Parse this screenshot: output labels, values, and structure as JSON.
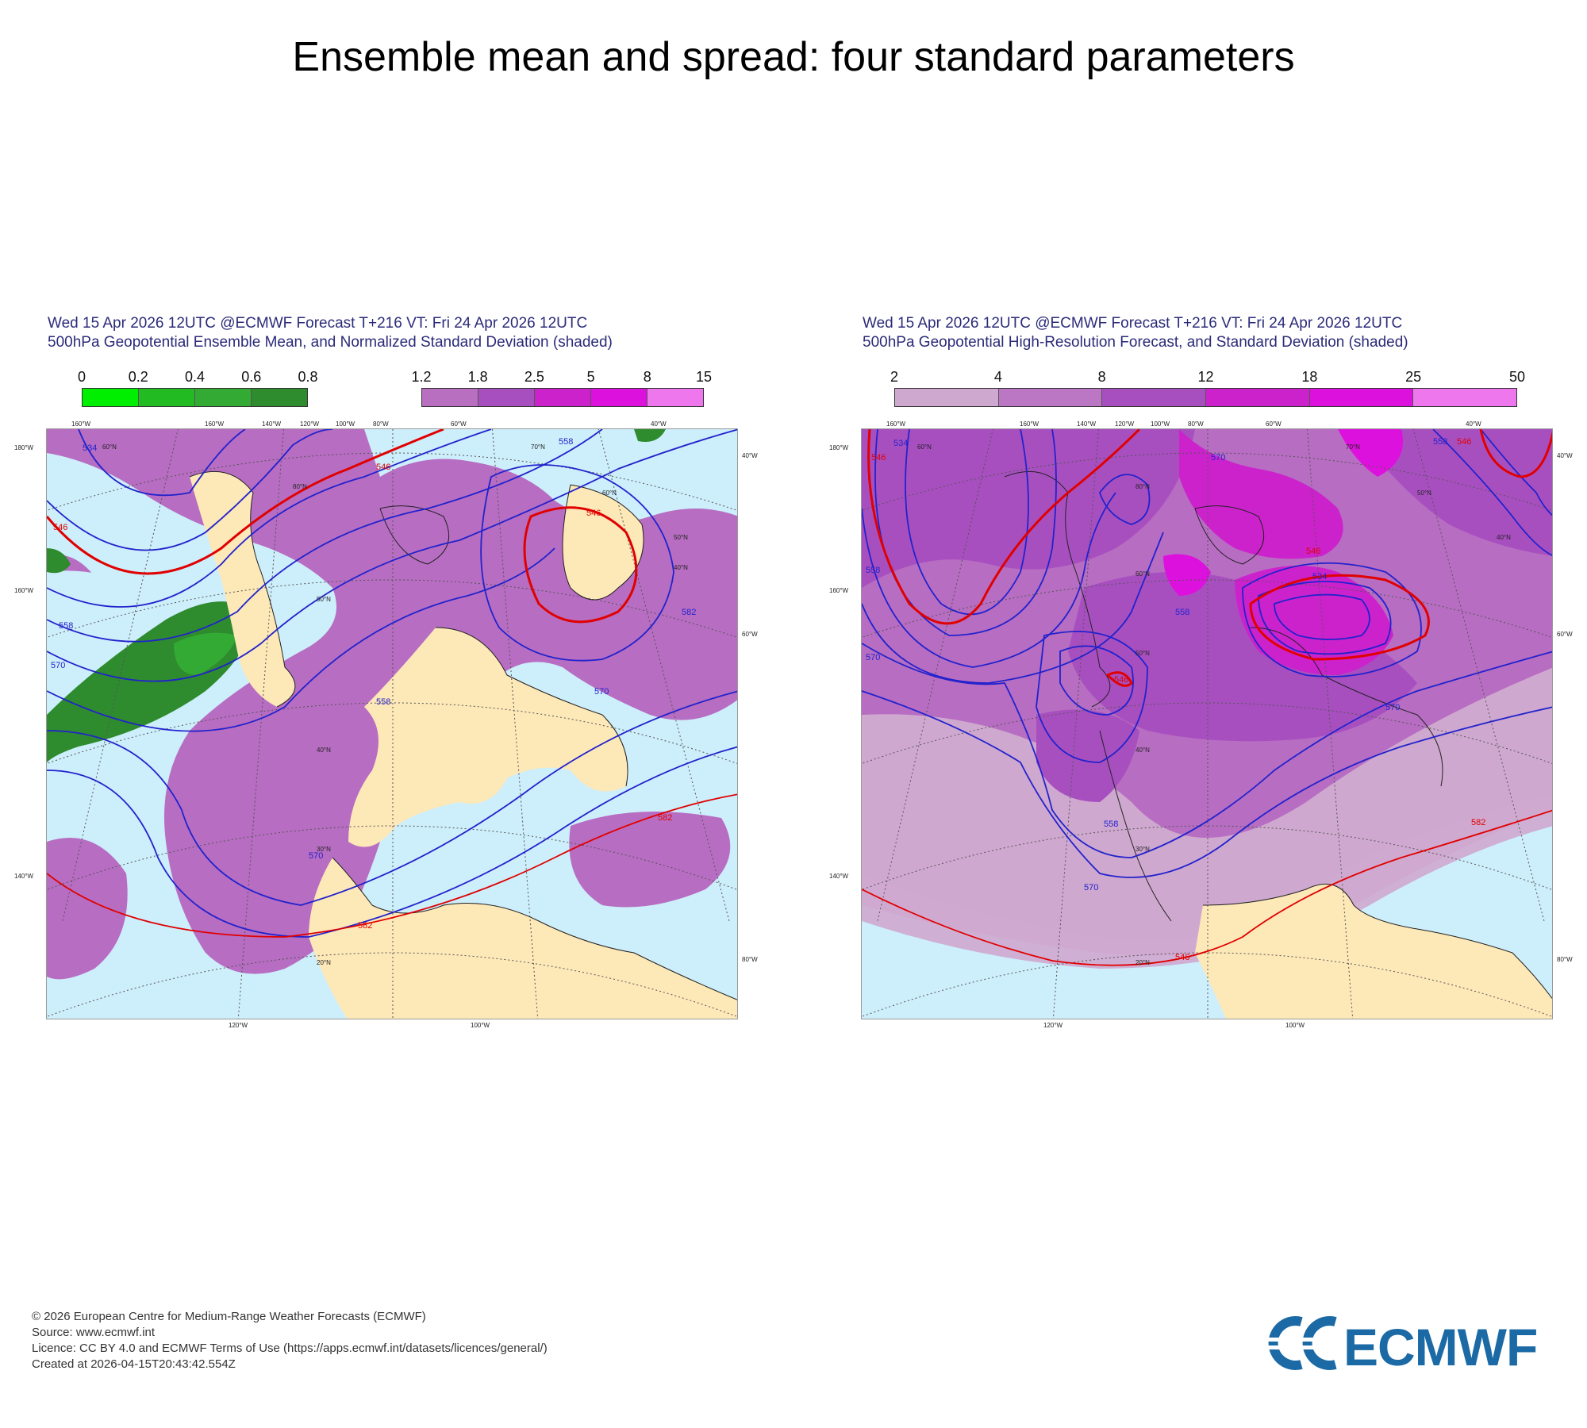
{
  "page": {
    "title": "Ensemble mean and spread: four standard parameters"
  },
  "left_panel": {
    "header_line1": "Wed 15 Apr 2026 12UTC @ECMWF Forecast T+216 VT: Fri 24 Apr 2026 12UTC",
    "header_line2": "500hPa Geopotential Ensemble Mean, and Normalized Standard Deviation (shaded)",
    "colorbar_a": {
      "ticks": [
        "0",
        "0.2",
        "0.4",
        "0.6",
        "0.8"
      ],
      "colors": [
        "#00ee00",
        "#22bb22",
        "#33aa33",
        "#2e8b2e"
      ]
    },
    "colorbar_b": {
      "ticks": [
        "1.2",
        "1.8",
        "2.5",
        "5",
        "8",
        "15"
      ],
      "colors": [
        "#b86fc0",
        "#a84fc0",
        "#cc22cc",
        "#dd11dd",
        "#ee77ee"
      ]
    },
    "contour_labels": [
      "534",
      "546",
      "546",
      "558",
      "558",
      "570",
      "570",
      "582",
      "582",
      "546",
      "558",
      "570",
      "582"
    ],
    "lat_labels": [
      "60°N",
      "50°N",
      "40°N",
      "30°N",
      "20°N",
      "80°N",
      "70°N",
      "60°N",
      "50°N",
      "40°N"
    ],
    "lon_labels_top": [
      "160°W",
      "160°W",
      "140°W",
      "120°W",
      "100°W",
      "80°W",
      "60°W",
      "40°W"
    ],
    "lon_labels_left": [
      "180°W",
      "160°W",
      "140°W"
    ],
    "lon_labels_right": [
      "40°W",
      "60°W",
      "80°W"
    ],
    "lon_labels_bottom": [
      "120°W",
      "100°W"
    ]
  },
  "right_panel": {
    "header_line1": "Wed 15 Apr 2026 12UTC @ECMWF Forecast T+216 VT: Fri 24 Apr 2026 12UTC",
    "header_line2": "500hPa Geopotential High-Resolution Forecast, and Standard Deviation (shaded)",
    "colorbar": {
      "ticks": [
        "2",
        "4",
        "8",
        "12",
        "18",
        "25",
        "50"
      ],
      "colors": [
        "#cfa8cf",
        "#bb77c4",
        "#a84fc0",
        "#cc22cc",
        "#dd11dd",
        "#ee77ee"
      ]
    },
    "contour_labels": [
      "534",
      "546",
      "558",
      "570",
      "546",
      "546",
      "558",
      "570",
      "534",
      "546",
      "558",
      "570",
      "582",
      "558",
      "546",
      "570"
    ],
    "lat_labels": [
      "60°N",
      "70°N",
      "80°N",
      "60°N",
      "50°N",
      "40°N",
      "30°N",
      "20°N",
      "50°N",
      "40°N"
    ],
    "lon_labels_top": [
      "160°W",
      "160°W",
      "140°W",
      "120°W",
      "100°W",
      "80°W",
      "60°W",
      "40°W"
    ],
    "lon_labels_left": [
      "180°W",
      "160°W",
      "140°W"
    ],
    "lon_labels_right": [
      "40°W",
      "60°W",
      "80°W"
    ],
    "lon_labels_bottom": [
      "120°W",
      "100°W"
    ]
  },
  "footer": {
    "line1": "© 2026 European Centre for Medium-Range Weather Forecasts (ECMWF)",
    "line2": "Source: www.ecmwf.int",
    "line3": "Licence: CC BY 4.0 and ECMWF Terms of Use (https://apps.ecmwf.int/datasets/licences/general/)",
    "line4": "Created at 2026-04-15T20:43:42.554Z"
  },
  "logo": {
    "text": "ECMWF",
    "color": "#1b6aa5"
  }
}
